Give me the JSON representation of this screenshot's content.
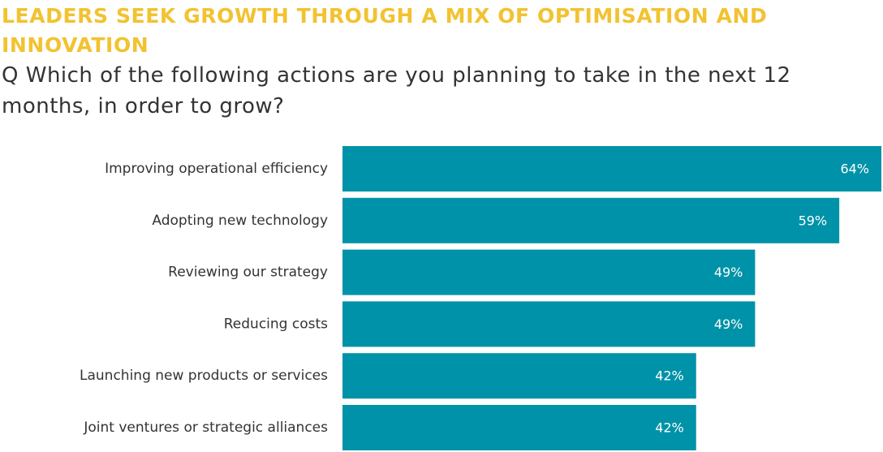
{
  "header": {
    "title": "LEADERS SEEK GROWTH THROUGH A MIX OF OPTIMISATION AND INNOVATION",
    "question": "Q Which of the following actions are you planning to take in the next 12 months, in order to grow?"
  },
  "colors": {
    "title": "#f2c230",
    "bar": "#0092a8",
    "text": "#333333",
    "value_label": "#ffffff"
  },
  "chart_data": {
    "type": "bar",
    "orientation": "horizontal",
    "categories": [
      "Improving operational efficiency",
      "Adopting new technology",
      "Reviewing our strategy",
      "Reducing costs",
      "Launching new products or services",
      "Joint ventures or strategic alliances"
    ],
    "values": [
      64,
      59,
      49,
      49,
      42,
      42
    ],
    "value_labels": [
      "64%",
      "59%",
      "49%",
      "49%",
      "42%",
      "42%"
    ],
    "unit": "%",
    "xlim": [
      0,
      64
    ],
    "grid": false,
    "legend": "none"
  }
}
